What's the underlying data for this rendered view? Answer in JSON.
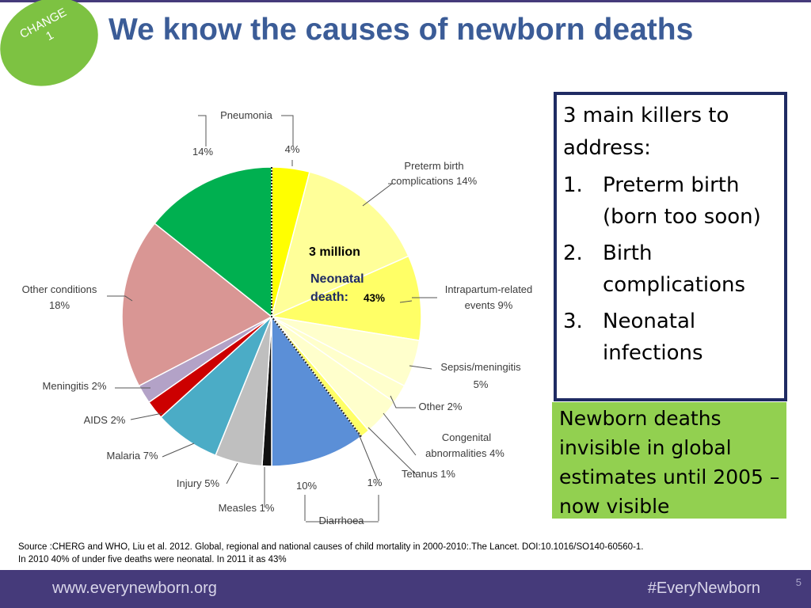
{
  "slide": {
    "badge": "CHANGE\n1",
    "title": "We know the causes of newborn deaths"
  },
  "chart_data": {
    "type": "pie",
    "slices": [
      {
        "label": "Pneumonia",
        "value": 4,
        "color": "#ffff00"
      },
      {
        "label": "Preterm birth complications",
        "value": 14,
        "color": "#ffff99"
      },
      {
        "label": "Intrapartum-related events",
        "value": 9,
        "color": "#ffff66"
      },
      {
        "label": "Sepsis/meningitis",
        "value": 5,
        "color": "#ffffcc"
      },
      {
        "label": "Other",
        "value": 2,
        "color": "#ffffcc"
      },
      {
        "label": "Congenital abnormalities",
        "value": 4,
        "color": "#ffffcc"
      },
      {
        "label": "Tetanus",
        "value": 1,
        "color": "#ffff66"
      },
      {
        "label": "Diarrhoea",
        "value": 10,
        "color": "#5b8fd7"
      },
      {
        "label": "Measles",
        "value": 1,
        "color": "#111111"
      },
      {
        "label": "Injury",
        "value": 5,
        "color": "#bfbfbf"
      },
      {
        "label": "Malaria",
        "value": 7,
        "color": "#4bacc6"
      },
      {
        "label": "AIDS",
        "value": 2,
        "color": "#cc0000"
      },
      {
        "label": "Meningitis",
        "value": 2,
        "color": "#b3a2c7"
      },
      {
        "label": "Other conditions",
        "value": 18,
        "color": "#d99694"
      },
      {
        "label": "Pneumonia",
        "value": 14,
        "color": "#00b050"
      }
    ],
    "labels": [
      {
        "text": "Pneumonia"
      },
      {
        "text": "14%"
      },
      {
        "text": "4%"
      },
      {
        "text": "Preterm birth"
      },
      {
        "text": "complications 14%"
      },
      {
        "text": "Intrapartum-related"
      },
      {
        "text": "events 9%"
      },
      {
        "text": "Sepsis/meningitis"
      },
      {
        "text": "5%"
      },
      {
        "text": "Other 2%"
      },
      {
        "text": "Congenital"
      },
      {
        "text": "abnormalities 4%"
      },
      {
        "text": "Tetanus 1%"
      },
      {
        "text": "1%"
      },
      {
        "text": "10%"
      },
      {
        "text": "Diarrhoea"
      },
      {
        "text": "Measles 1%"
      },
      {
        "text": "Injury 5%"
      },
      {
        "text": "Malaria 7%"
      },
      {
        "text": "AIDS 2%"
      },
      {
        "text": "Meningitis 2%"
      },
      {
        "text": "Other conditions"
      },
      {
        "text": "18%"
      }
    ],
    "neonatal_annotation": {
      "count": "3 million",
      "label_line1": "Neonatal",
      "label_line2": "death:",
      "percent": "43%"
    }
  },
  "killers_box": {
    "intro": "3 main killers to address:",
    "items": [
      {
        "num": "1.",
        "text": "Preterm birth (born too soon)"
      },
      {
        "num": "2.",
        "text": "Birth complications"
      },
      {
        "num": "3.",
        "text": "Neonatal infections"
      }
    ]
  },
  "callout": {
    "text": "Newborn deaths invisible in global estimates until 2005 – now visible"
  },
  "source": {
    "line1": "Source :CHERG and WHO,  Liu et al. 2012. Global, regional and national causes of child mortality in 2000-2010:.The Lancet. DOI:10.1016/SO140-60560-1.",
    "line2": "In 2010 40% of under five deaths were neonatal. In 2011 it as 43%"
  },
  "footer": {
    "url": "www.everynewborn.org",
    "hashtag": "#EveryNewborn",
    "page_number": "5"
  }
}
